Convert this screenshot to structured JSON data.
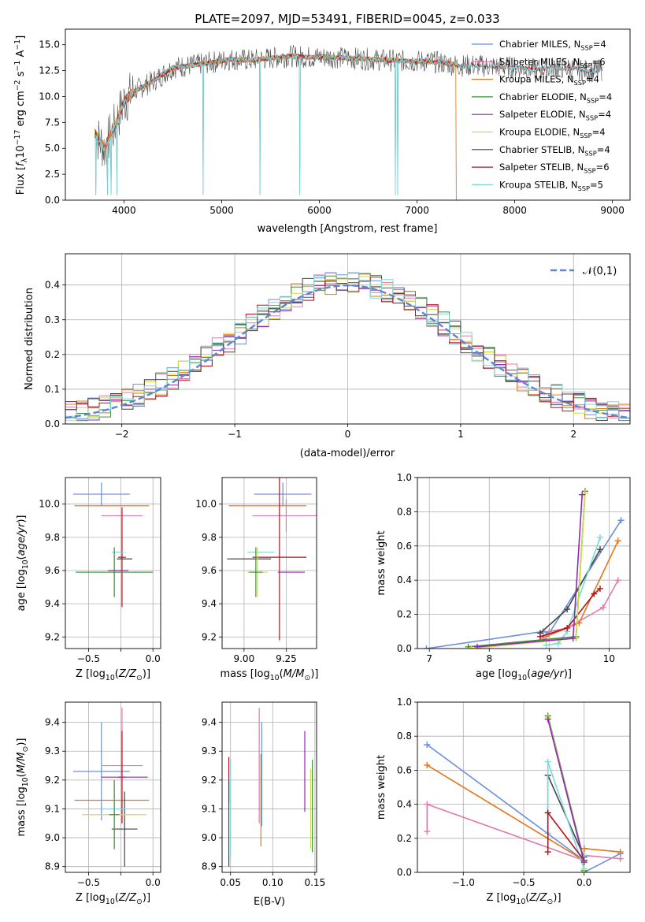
{
  "figure": {
    "title": "PLATE=2097, MJD=53491, FIBERID=0045, z=0.033"
  },
  "models": [
    {
      "name": "Chabrier MILES",
      "nssp": "4",
      "color": "#6b8fdc"
    },
    {
      "name": "Salpeter MILES",
      "nssp": "6",
      "color": "#e07aad"
    },
    {
      "name": "Kroupa MILES",
      "nssp": "4",
      "color": "#e0771b"
    },
    {
      "name": "Chabrier ELODIE",
      "nssp": "4",
      "color": "#3c8f3c"
    },
    {
      "name": "Salpeter ELODIE",
      "nssp": "4",
      "color": "#8f2ab0"
    },
    {
      "name": "Kroupa ELODIE",
      "nssp": "4",
      "color": "#d2dc4a"
    },
    {
      "name": "Chabrier STELIB",
      "nssp": "4",
      "color": "#444444"
    },
    {
      "name": "Salpeter STELIB",
      "nssp": "6",
      "color": "#b0141a"
    },
    {
      "name": "Kroupa STELIB",
      "nssp": "5",
      "color": "#78d8dc"
    }
  ],
  "chart_data": [
    {
      "id": "spectrum",
      "type": "line",
      "xlabel": "wavelength [Angstrom, rest frame]",
      "ylabel": "Flux [f_λ 10^-17 erg cm^-2 s^-1 A^-1]",
      "xlim": [
        3400,
        9180
      ],
      "ylim": [
        0,
        16.5
      ],
      "xticks": [
        4000,
        5000,
        6000,
        7000,
        8000,
        9000
      ],
      "yticks": [
        0.0,
        2.5,
        5.0,
        7.5,
        10.0,
        12.5,
        15.0
      ],
      "legend": "top-right",
      "series_shape": {
        "x": [
          3700,
          3800,
          3900,
          4000,
          4100,
          4300,
          4500,
          4700,
          4900,
          5100,
          5300,
          5500,
          5700,
          5900,
          6100,
          6300,
          6500,
          6700,
          6900,
          7100,
          7300,
          7420
        ],
        "y": [
          6.5,
          5.0,
          7.0,
          9.5,
          10.5,
          11.5,
          12.8,
          13.0,
          13.3,
          13.6,
          13.5,
          13.7,
          13.9,
          13.8,
          13.8,
          13.7,
          13.6,
          13.5,
          13.4,
          13.4,
          13.2,
          13.0
        ]
      },
      "stelib_extension": {
        "x": [
          7420,
          7600,
          7800,
          8000,
          8200,
          8400,
          8600,
          8800,
          8900
        ],
        "y": [
          13.0,
          13.0,
          12.9,
          12.8,
          12.6,
          12.8,
          12.7,
          12.4,
          12.6
        ]
      }
    },
    {
      "id": "residuals",
      "type": "histogram",
      "xlabel": "(data-model)/error",
      "ylabel": "Normed distribution",
      "xlim": [
        -2.5,
        2.5
      ],
      "ylim": [
        0,
        0.49
      ],
      "xticks": [
        -2,
        -1,
        0,
        1,
        2
      ],
      "yticks": [
        0.0,
        0.1,
        0.2,
        0.3,
        0.4
      ],
      "reference_label": "𝒩(0,1)",
      "reference_mean": 0,
      "reference_sigma": 1,
      "bin_width": 0.1,
      "grid": true,
      "legend": "top-right"
    },
    {
      "id": "age-vs-Z",
      "type": "errorbar",
      "xlabel": "Z [log10(Z/Z⊙)]",
      "ylabel": "age [log10(age/yr)]",
      "xlim": [
        -0.68,
        0.06
      ],
      "ylim": [
        9.13,
        10.16
      ],
      "xticks": [
        -0.5,
        -0.25,
        0.0
      ],
      "xticklabels": [
        "−0.5",
        "",
        "0.0"
      ],
      "yticks": [
        9.2,
        9.4,
        9.6,
        9.8,
        10.0
      ],
      "points": [
        {
          "m": 0,
          "x": -0.4,
          "y": 10.06,
          "xerr": 0.22,
          "yerr": 0.07
        },
        {
          "m": 2,
          "x": -0.32,
          "y": 9.99,
          "xerr": 0.29,
          "yerr": 0.0
        },
        {
          "m": 1,
          "x": -0.24,
          "y": 9.93,
          "xerr": 0.16,
          "yerr": 0.0
        },
        {
          "m": 7,
          "x": -0.24,
          "y": 9.68,
          "xerr": 0.03,
          "yerr": 0.3
        },
        {
          "m": 6,
          "x": -0.22,
          "y": 9.67,
          "xerr": 0.06,
          "yerr": 0.0
        },
        {
          "m": 8,
          "x": -0.27,
          "y": 9.71,
          "xerr": 0.05,
          "yerr": 0.0
        },
        {
          "m": 5,
          "x": -0.3,
          "y": 9.59,
          "xerr": 0.04,
          "yerr": 0.15
        },
        {
          "m": 3,
          "x": -0.3,
          "y": 9.59,
          "xerr": 0.3,
          "yerr": 0.15
        },
        {
          "m": 4,
          "x": -0.27,
          "y": 9.6,
          "xerr": 0.08,
          "yerr": 0.0
        }
      ]
    },
    {
      "id": "age-vs-mass",
      "type": "errorbar",
      "xlabel": "mass [log10(M/M⊙)]",
      "ylabel": "",
      "xlim": [
        8.87,
        9.43
      ],
      "ylim": [
        9.13,
        10.16
      ],
      "xticks": [
        9.0,
        9.25
      ],
      "xticklabels": [
        "9.00",
        "9.25"
      ],
      "yticks": [
        9.2,
        9.4,
        9.6,
        9.8,
        10.0
      ],
      "points": [
        {
          "m": 0,
          "x": 9.23,
          "y": 10.06,
          "xerr": 0.17,
          "yerr": 0.07
        },
        {
          "m": 2,
          "x": 9.14,
          "y": 9.99,
          "xerr": 0.23,
          "yerr": 0.0
        },
        {
          "m": 1,
          "x": 9.25,
          "y": 9.93,
          "xerr": 0.2,
          "yerr": 0.1
        },
        {
          "m": 7,
          "x": 9.21,
          "y": 9.68,
          "xerr": 0.16,
          "yerr": 0.5
        },
        {
          "m": 6,
          "x": 9.03,
          "y": 9.67,
          "xerr": 0.13,
          "yerr": 0.0
        },
        {
          "m": 8,
          "x": 9.1,
          "y": 9.71,
          "xerr": 0.08,
          "yerr": 0.0
        },
        {
          "m": 5,
          "x": 9.08,
          "y": 9.59,
          "xerr": 0.06,
          "yerr": 0.15
        },
        {
          "m": 3,
          "x": 9.07,
          "y": 9.59,
          "xerr": 0.04,
          "yerr": 0.15
        },
        {
          "m": 4,
          "x": 9.28,
          "y": 9.59,
          "xerr": 0.08,
          "yerr": 0.0
        }
      ]
    },
    {
      "id": "weight-vs-age",
      "type": "line",
      "xlabel": "age [log10(age/yr)]",
      "ylabel": "mass weight",
      "xlim": [
        6.8,
        10.35
      ],
      "ylim": [
        0.0,
        1.0
      ],
      "xticks": [
        7,
        8,
        9,
        10
      ],
      "yticks": [
        0.0,
        0.2,
        0.4,
        0.6,
        0.8,
        1.0
      ],
      "series": [
        {
          "m": 0,
          "x": [
            6.95,
            8.9,
            9.0,
            10.2
          ],
          "y": [
            0.0,
            0.1,
            0.09,
            0.75
          ]
        },
        {
          "m": 2,
          "x": [
            8.95,
            9.5,
            10.15
          ],
          "y": [
            0.07,
            0.15,
            0.63
          ]
        },
        {
          "m": 1,
          "x": [
            8.9,
            9.0,
            9.3,
            9.9,
            10.15
          ],
          "y": [
            0.06,
            0.1,
            0.12,
            0.24,
            0.4
          ]
        },
        {
          "m": 6,
          "x": [
            8.85,
            9.3,
            9.85
          ],
          "y": [
            0.09,
            0.23,
            0.58
          ]
        },
        {
          "m": 8,
          "x": [
            8.95,
            9.15,
            9.3,
            9.85
          ],
          "y": [
            0.02,
            0.03,
            0.1,
            0.65
          ]
        },
        {
          "m": 7,
          "x": [
            8.85,
            9.3,
            9.75,
            9.85
          ],
          "y": [
            0.07,
            0.12,
            0.32,
            0.35
          ]
        },
        {
          "m": 3,
          "x": [
            7.65,
            9.45,
            9.6
          ],
          "y": [
            0.01,
            0.07,
            0.92
          ]
        },
        {
          "m": 5,
          "x": [
            7.7,
            9.45,
            9.6
          ],
          "y": [
            0.0,
            0.06,
            0.91
          ]
        },
        {
          "m": 4,
          "x": [
            7.8,
            9.4,
            9.55
          ],
          "y": [
            0.01,
            0.06,
            0.9
          ]
        }
      ]
    },
    {
      "id": "mass-vs-Z",
      "type": "errorbar",
      "xlabel": "Z [log10(Z/Z⊙)]",
      "ylabel": "mass [log10(M/M⊙)]",
      "xlim": [
        -0.68,
        0.06
      ],
      "ylim": [
        8.88,
        9.47
      ],
      "xticks": [
        -0.5,
        -0.25,
        0.0
      ],
      "xticklabels": [
        "−0.5",
        "",
        "0.0"
      ],
      "yticks": [
        8.9,
        9.0,
        9.1,
        9.2,
        9.3,
        9.4
      ],
      "points": [
        {
          "m": 0,
          "x": -0.4,
          "y": 9.23,
          "xerr": 0.22,
          "yerr": 0.17
        },
        {
          "m": 1,
          "x": -0.24,
          "y": 9.25,
          "xerr": 0.16,
          "yerr": 0.2
        },
        {
          "m": 2,
          "x": -0.32,
          "y": 9.13,
          "xerr": 0.29,
          "yerr": 0.0
        },
        {
          "m": 7,
          "x": -0.24,
          "y": 9.21,
          "xerr": 0.03,
          "yerr": 0.16
        },
        {
          "m": 4,
          "x": -0.22,
          "y": 9.21,
          "xerr": 0.18,
          "yerr": 0.0
        },
        {
          "m": 6,
          "x": -0.22,
          "y": 9.03,
          "xerr": 0.1,
          "yerr": 0.13
        },
        {
          "m": 8,
          "x": -0.3,
          "y": 9.1,
          "xerr": 0.09,
          "yerr": 0.0
        },
        {
          "m": 5,
          "x": -0.3,
          "y": 9.08,
          "xerr": 0.25,
          "yerr": 0.12
        },
        {
          "m": 3,
          "x": -0.3,
          "y": 9.08,
          "xerr": 0.04,
          "yerr": 0.12
        }
      ]
    },
    {
      "id": "mass-vs-ebv",
      "type": "errorbar",
      "xlabel": "E(B-V)",
      "ylabel": "",
      "xlim": [
        0.04,
        0.152
      ],
      "ylim": [
        8.88,
        9.47
      ],
      "xticks": [
        0.05,
        0.1,
        0.15
      ],
      "xticklabels": [
        "0.05",
        "0.10",
        "0.15"
      ],
      "yticks": [
        8.9,
        9.0,
        9.1,
        9.2,
        9.3,
        9.4
      ],
      "points": [
        {
          "m": 0,
          "x": 0.087,
          "y": 9.22,
          "xerr": 0.0,
          "yerr": 0.18
        },
        {
          "m": 1,
          "x": 0.084,
          "y": 9.25,
          "xerr": 0.0,
          "yerr": 0.2
        },
        {
          "m": 2,
          "x": 0.086,
          "y": 9.13,
          "xerr": 0.0,
          "yerr": 0.16
        },
        {
          "m": 7,
          "x": 0.048,
          "y": 9.2,
          "xerr": 0.0,
          "yerr": 0.08
        },
        {
          "m": 4,
          "x": 0.138,
          "y": 9.23,
          "xerr": 0.0,
          "yerr": 0.14
        },
        {
          "m": 6,
          "x": 0.048,
          "y": 9.05,
          "xerr": 0.0,
          "yerr": 0.15
        },
        {
          "m": 8,
          "x": 0.05,
          "y": 9.1,
          "xerr": 0.0,
          "yerr": 0.17
        },
        {
          "m": 5,
          "x": 0.145,
          "y": 9.1,
          "xerr": 0.0,
          "yerr": 0.14
        },
        {
          "m": 3,
          "x": 0.147,
          "y": 9.11,
          "xerr": 0.0,
          "yerr": 0.16
        }
      ]
    },
    {
      "id": "weight-vs-Z",
      "type": "line",
      "xlabel": "Z [log10(Z/Z⊙)]",
      "ylabel": "mass weight",
      "xlim": [
        -1.38,
        0.38
      ],
      "ylim": [
        0.0,
        1.0
      ],
      "xticks": [
        -1.0,
        -0.5,
        0.0
      ],
      "xticklabels": [
        "−1.0",
        "−0.5",
        "0.0"
      ],
      "yticks": [
        0.0,
        0.2,
        0.4,
        0.6,
        0.8,
        1.0
      ],
      "series": [
        {
          "m": 0,
          "x": [
            -1.3,
            0.0,
            0.0,
            0.3
          ],
          "y": [
            0.75,
            0.07,
            0.0,
            0.11
          ]
        },
        {
          "m": 2,
          "x": [
            -1.3,
            0.0,
            0.0,
            0.3
          ],
          "y": [
            0.63,
            0.07,
            0.14,
            0.12
          ]
        },
        {
          "m": 1,
          "x": [
            -1.3,
            -1.3,
            0.0,
            0.0,
            0.3
          ],
          "y": [
            0.24,
            0.4,
            0.07,
            0.1,
            0.08
          ]
        },
        {
          "m": 6,
          "x": [
            -0.3,
            -0.3,
            0.0
          ],
          "y": [
            0.35,
            0.57,
            0.09
          ]
        },
        {
          "m": 8,
          "x": [
            -0.3,
            -0.3,
            0.0,
            0.0
          ],
          "y": [
            0.23,
            0.65,
            0.02,
            0.1
          ]
        },
        {
          "m": 7,
          "x": [
            -0.3,
            -0.3,
            0.0
          ],
          "y": [
            0.12,
            0.35,
            0.07
          ]
        },
        {
          "m": 3,
          "x": [
            -0.3,
            0.0,
            0.0
          ],
          "y": [
            0.92,
            0.07,
            0.01
          ]
        },
        {
          "m": 5,
          "x": [
            -0.3,
            0.0,
            0.0
          ],
          "y": [
            0.91,
            0.06,
            0.0
          ]
        },
        {
          "m": 4,
          "x": [
            -0.3,
            0.0
          ],
          "y": [
            0.9,
            0.06
          ]
        }
      ]
    }
  ]
}
